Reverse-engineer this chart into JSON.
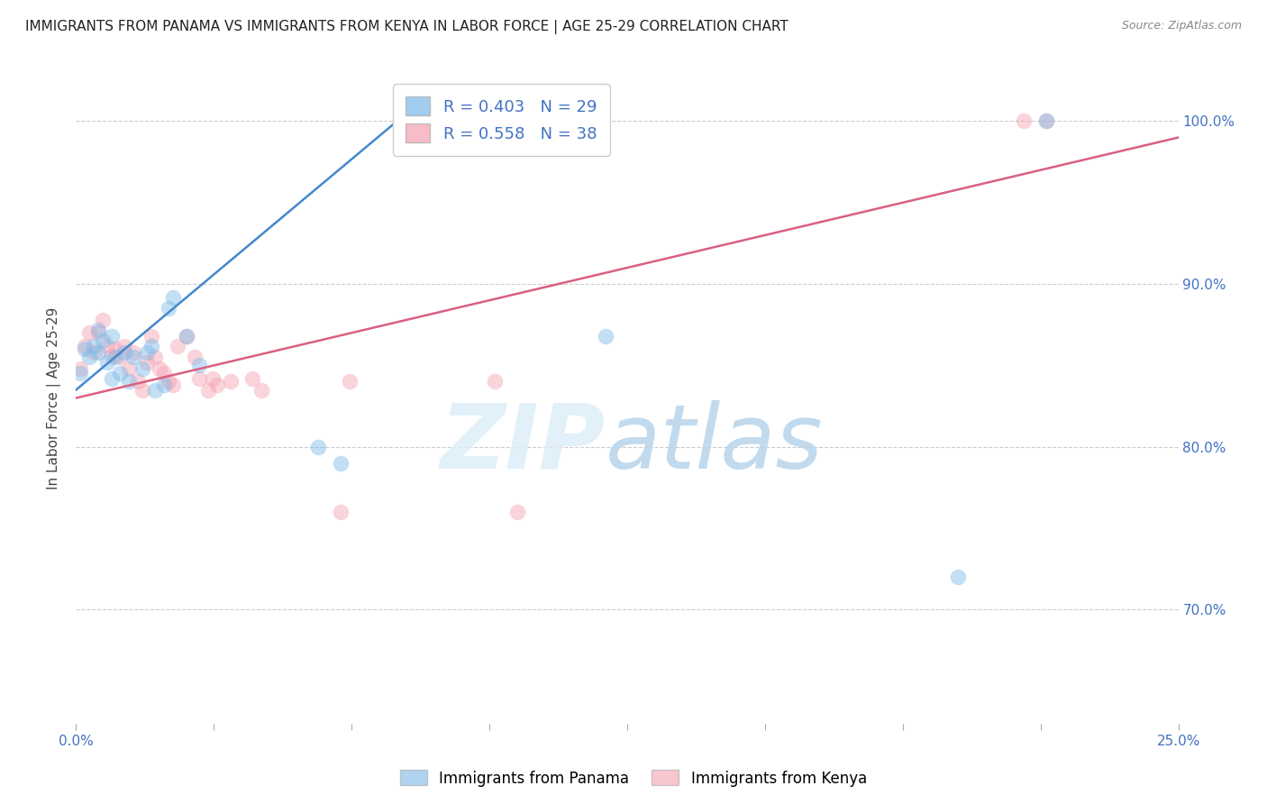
{
  "title": "IMMIGRANTS FROM PANAMA VS IMMIGRANTS FROM KENYA IN LABOR FORCE | AGE 25-29 CORRELATION CHART",
  "source": "Source: ZipAtlas.com",
  "ylabel": "In Labor Force | Age 25-29",
  "xlim": [
    0.0,
    0.25
  ],
  "ylim": [
    0.63,
    1.03
  ],
  "xticks": [
    0.0,
    0.03125,
    0.0625,
    0.09375,
    0.125,
    0.15625,
    0.1875,
    0.21875,
    0.25
  ],
  "xtick_labels_only_ends": true,
  "yticks": [
    0.7,
    0.8,
    0.9,
    1.0
  ],
  "yticklabels": [
    "70.0%",
    "80.0%",
    "90.0%",
    "100.0%"
  ],
  "grid_color": "#cccccc",
  "background_color": "#ffffff",
  "panama_color": "#7ab8e8",
  "kenya_color": "#f4a0b0",
  "panama_line_color": "#4488cc",
  "kenya_line_color": "#d96080",
  "panama_scatter_x": [
    0.001,
    0.002,
    0.003,
    0.004,
    0.005,
    0.005,
    0.006,
    0.007,
    0.008,
    0.008,
    0.009,
    0.01,
    0.011,
    0.012,
    0.013,
    0.015,
    0.016,
    0.017,
    0.018,
    0.02,
    0.021,
    0.022,
    0.025,
    0.028,
    0.055,
    0.06,
    0.12,
    0.2,
    0.22
  ],
  "panama_scatter_y": [
    0.845,
    0.86,
    0.855,
    0.862,
    0.858,
    0.872,
    0.865,
    0.852,
    0.842,
    0.868,
    0.855,
    0.845,
    0.858,
    0.84,
    0.855,
    0.848,
    0.858,
    0.862,
    0.835,
    0.838,
    0.885,
    0.892,
    0.868,
    0.85,
    0.8,
    0.79,
    0.868,
    0.72,
    1.0
  ],
  "kenya_scatter_x": [
    0.001,
    0.002,
    0.003,
    0.004,
    0.005,
    0.006,
    0.007,
    0.008,
    0.009,
    0.01,
    0.011,
    0.012,
    0.013,
    0.014,
    0.015,
    0.016,
    0.017,
    0.018,
    0.019,
    0.02,
    0.021,
    0.022,
    0.023,
    0.025,
    0.027,
    0.028,
    0.03,
    0.031,
    0.032,
    0.035,
    0.04,
    0.042,
    0.06,
    0.062,
    0.095,
    0.1,
    0.215,
    0.22
  ],
  "kenya_scatter_y": [
    0.848,
    0.862,
    0.87,
    0.858,
    0.87,
    0.878,
    0.862,
    0.856,
    0.86,
    0.855,
    0.862,
    0.848,
    0.858,
    0.84,
    0.835,
    0.852,
    0.868,
    0.855,
    0.848,
    0.845,
    0.84,
    0.838,
    0.862,
    0.868,
    0.855,
    0.842,
    0.835,
    0.842,
    0.838,
    0.84,
    0.842,
    0.835,
    0.76,
    0.84,
    0.84,
    0.76,
    1.0,
    1.0
  ],
  "panama_regline_x": [
    0.0,
    0.075
  ],
  "panama_regline_y": [
    0.835,
    1.005
  ],
  "kenya_regline_x": [
    0.0,
    0.25
  ],
  "kenya_regline_y": [
    0.83,
    0.99
  ],
  "legend_r_panama": "0.403",
  "legend_n_panama": "29",
  "legend_r_kenya": "0.558",
  "legend_n_kenya": "38",
  "legend_fontsize": 13,
  "title_fontsize": 11,
  "axis_label_fontsize": 11,
  "tick_fontsize": 11,
  "source_fontsize": 9,
  "bottom_legend_items": [
    "Immigrants from Panama",
    "Immigrants from Kenya"
  ]
}
